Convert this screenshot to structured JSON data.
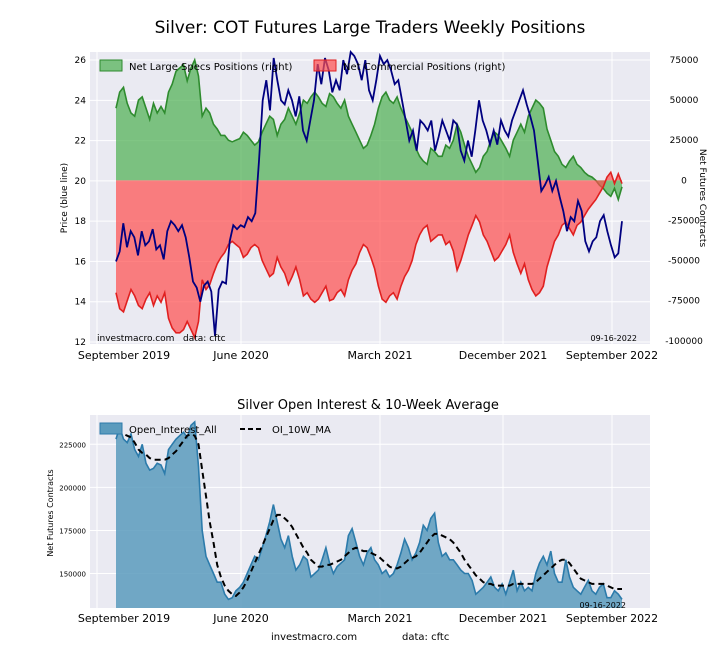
{
  "figure": {
    "footer_site": "investmacro.com",
    "footer_data": "data: cftc"
  },
  "chart_data": [
    {
      "type": "area",
      "title": "Silver: COT Futures Large Traders Weekly Positions",
      "ylabel_left": "Price (blue line)",
      "ylabel_right": "Net Futures Contracts",
      "x_ticks": [
        "September 2019",
        "June 2020",
        "March 2021",
        "December 2021",
        "September 2022"
      ],
      "y_left_ticks": [
        "12",
        "14",
        "16",
        "18",
        "20",
        "22",
        "24",
        "26"
      ],
      "y_left_range": [
        11.9,
        26.4
      ],
      "y_right_ticks": [
        "-100000",
        "-75000",
        "-50000",
        "-25000",
        "0",
        "25000",
        "50000",
        "75000"
      ],
      "y_right_range": [
        -102000,
        80000
      ],
      "legend": [
        "Net Large Specs Positions (right)",
        "Net Commercial Positions (right)"
      ],
      "watermark": "investmacro.com   data: cftc",
      "date_label": "09-16-2022",
      "colors": {
        "specs": "#4caf50",
        "specs_line": "#2e8b2e",
        "commercial": "#ff4d4d",
        "commercial_line": "#e02020",
        "price": "#000080",
        "panel_bg": "#eaeaf2"
      },
      "series": [
        {
          "name": "Net Large Specs Positions",
          "axis": "right",
          "values": [
            45000,
            55000,
            58000,
            48000,
            42000,
            40000,
            50000,
            52000,
            45000,
            38000,
            48000,
            42000,
            46000,
            42000,
            55000,
            60000,
            68000,
            70000,
            72000,
            62000,
            70000,
            75000,
            65000,
            40000,
            45000,
            42000,
            35000,
            32000,
            28000,
            28000,
            25000,
            24000,
            25000,
            26000,
            30000,
            28000,
            25000,
            22000,
            24000,
            30000,
            35000,
            40000,
            38000,
            28000,
            35000,
            38000,
            45000,
            40000,
            35000,
            42000,
            50000,
            48000,
            52000,
            55000,
            52000,
            48000,
            46000,
            54000,
            52000,
            48000,
            45000,
            50000,
            40000,
            35000,
            30000,
            25000,
            20000,
            22000,
            28000,
            35000,
            45000,
            52000,
            55000,
            50000,
            48000,
            52000,
            45000,
            40000,
            35000,
            30000,
            20000,
            15000,
            12000,
            10000,
            20000,
            18000,
            15000,
            15000,
            22000,
            20000,
            25000,
            35000,
            30000,
            22000,
            15000,
            10000,
            5000,
            8000,
            15000,
            18000,
            25000,
            30000,
            28000,
            24000,
            20000,
            15000,
            25000,
            30000,
            35000,
            30000,
            40000,
            45000,
            50000,
            48000,
            45000,
            32000,
            25000,
            18000,
            15000,
            10000,
            8000,
            12000,
            15000,
            10000,
            8000,
            5000,
            3000,
            2000,
            0,
            -3000,
            -5000,
            -8000,
            -10000,
            -5000,
            -12000,
            -4000
          ]
        },
        {
          "name": "Net Commercial Positions",
          "axis": "right",
          "values": [
            -70000,
            -80000,
            -82000,
            -75000,
            -68000,
            -72000,
            -78000,
            -80000,
            -74000,
            -70000,
            -78000,
            -72000,
            -76000,
            -70000,
            -86000,
            -92000,
            -95000,
            -95000,
            -93000,
            -88000,
            -93000,
            -98000,
            -88000,
            -62000,
            -68000,
            -65000,
            -58000,
            -52000,
            -48000,
            -45000,
            -40000,
            -38000,
            -40000,
            -42000,
            -48000,
            -46000,
            -42000,
            -40000,
            -42000,
            -50000,
            -55000,
            -60000,
            -58000,
            -48000,
            -54000,
            -58000,
            -65000,
            -60000,
            -54000,
            -62000,
            -72000,
            -70000,
            -74000,
            -76000,
            -74000,
            -70000,
            -66000,
            -75000,
            -74000,
            -70000,
            -68000,
            -72000,
            -62000,
            -56000,
            -52000,
            -45000,
            -40000,
            -42000,
            -48000,
            -55000,
            -66000,
            -74000,
            -76000,
            -72000,
            -70000,
            -74000,
            -66000,
            -60000,
            -56000,
            -50000,
            -40000,
            -34000,
            -30000,
            -28000,
            -38000,
            -36000,
            -34000,
            -34000,
            -40000,
            -38000,
            -44000,
            -56000,
            -50000,
            -42000,
            -34000,
            -28000,
            -22000,
            -26000,
            -34000,
            -38000,
            -44000,
            -50000,
            -48000,
            -44000,
            -40000,
            -34000,
            -45000,
            -52000,
            -58000,
            -52000,
            -62000,
            -68000,
            -72000,
            -70000,
            -66000,
            -54000,
            -46000,
            -38000,
            -34000,
            -28000,
            -26000,
            -30000,
            -34000,
            -28000,
            -26000,
            -22000,
            -18000,
            -15000,
            -12000,
            -8000,
            -4000,
            2000,
            5000,
            -2000,
            4000,
            -2000
          ]
        },
        {
          "name": "Price",
          "axis": "left",
          "values": [
            16.0,
            16.5,
            17.9,
            16.7,
            17.5,
            17.2,
            16.3,
            17.5,
            16.8,
            17.0,
            17.6,
            16.6,
            16.8,
            16.1,
            17.5,
            18.0,
            17.8,
            17.5,
            17.8,
            17.2,
            16.2,
            15.0,
            14.7,
            14.0,
            14.8,
            15.0,
            14.5,
            12.3,
            14.6,
            15.0,
            14.9,
            17.0,
            17.8,
            17.6,
            17.8,
            17.7,
            18.2,
            18.0,
            18.4,
            21.0,
            24.0,
            25.0,
            23.5,
            26.1,
            25.0,
            24.0,
            23.8,
            24.5,
            24.0,
            23.2,
            24.2,
            22.5,
            22.0,
            23.0,
            24.0,
            25.8,
            24.8,
            26.1,
            25.5,
            24.4,
            25.0,
            24.5,
            26.0,
            25.3,
            27.0,
            26.2,
            25.8,
            25.0,
            26.0,
            24.5,
            24.0,
            25.0,
            26.2,
            25.8,
            26.0,
            25.5,
            24.8,
            25.0,
            24.0,
            23.0,
            22.0,
            22.5,
            21.5,
            23.0,
            22.8,
            22.5,
            23.0,
            21.5,
            22.2,
            23.0,
            22.5,
            22.0,
            23.0,
            22.8,
            21.5,
            21.0,
            22.0,
            21.2,
            22.5,
            24.0,
            23.0,
            22.5,
            21.8,
            22.5,
            21.8,
            23.0,
            22.5,
            22.2,
            23.0,
            23.5,
            24.0,
            24.5,
            23.8,
            23.2,
            22.5,
            21.0,
            19.5,
            19.8,
            20.2,
            19.5,
            20.0,
            19.2,
            18.5,
            17.5,
            18.2,
            18.0,
            19.0,
            18.5,
            17.0,
            16.5,
            17.0,
            17.2,
            18.0,
            18.3,
            17.5,
            16.8,
            16.2,
            16.4,
            18.0
          ]
        }
      ]
    },
    {
      "type": "area",
      "title": "Silver Open Interest & 10-Week Average",
      "ylabel": "Net Futures Contracts",
      "x_ticks": [
        "September 2019",
        "June 2020",
        "March 2021",
        "December 2021",
        "September 2022"
      ],
      "y_ticks": [
        "150000",
        "175000",
        "200000",
        "225000"
      ],
      "y_range": [
        130000,
        242000
      ],
      "legend": [
        "Open_Interest_All",
        "OI_10W_MA"
      ],
      "date_label": "09-16-2022",
      "colors": {
        "oi_fill": "#5b9bbd",
        "oi_line": "#2c7bab",
        "ma": "#000000",
        "panel_bg": "#eaeaf2"
      },
      "series": [
        {
          "name": "Open_Interest_All",
          "values": [
            228000,
            235000,
            228000,
            226000,
            231000,
            222000,
            218000,
            225000,
            214000,
            210000,
            211000,
            214000,
            213000,
            208000,
            222000,
            225000,
            228000,
            230000,
            232000,
            229000,
            236000,
            238000,
            212000,
            175000,
            160000,
            155000,
            150000,
            145000,
            145000,
            138000,
            135000,
            136000,
            140000,
            142000,
            145000,
            150000,
            155000,
            160000,
            158000,
            165000,
            172000,
            180000,
            190000,
            180000,
            170000,
            165000,
            172000,
            160000,
            152000,
            155000,
            160000,
            158000,
            148000,
            150000,
            152000,
            158000,
            165000,
            156000,
            150000,
            154000,
            156000,
            158000,
            172000,
            176000,
            168000,
            160000,
            155000,
            162000,
            165000,
            158000,
            155000,
            150000,
            152000,
            148000,
            150000,
            155000,
            162000,
            170000,
            165000,
            158000,
            162000,
            168000,
            178000,
            175000,
            182000,
            185000,
            168000,
            160000,
            162000,
            158000,
            158000,
            155000,
            152000,
            150000,
            150000,
            146000,
            138000,
            140000,
            142000,
            145000,
            148000,
            142000,
            140000,
            144000,
            138000,
            145000,
            152000,
            140000,
            145000,
            140000,
            142000,
            140000,
            150000,
            156000,
            160000,
            155000,
            163000,
            150000,
            145000,
            145000,
            158000,
            148000,
            142000,
            140000,
            138000,
            142000,
            146000,
            140000,
            138000,
            142000,
            144000,
            136000,
            136000,
            140000,
            138000,
            135000
          ]
        },
        {
          "name": "OI_10W_MA",
          "values": [
            232000,
            232000,
            231000,
            230000,
            229000,
            226000,
            222000,
            220000,
            219000,
            217000,
            216000,
            216000,
            216000,
            216000,
            217000,
            219000,
            221000,
            224000,
            227000,
            230000,
            231000,
            230000,
            225000,
            210000,
            195000,
            180000,
            168000,
            155000,
            148000,
            143000,
            140000,
            138000,
            137000,
            139000,
            142000,
            146000,
            151000,
            156000,
            161000,
            166000,
            171000,
            176000,
            181000,
            184000,
            184000,
            182000,
            180000,
            177000,
            173000,
            169000,
            165000,
            162000,
            158000,
            156000,
            154000,
            154000,
            155000,
            155000,
            156000,
            157000,
            158000,
            160000,
            162000,
            164000,
            165000,
            164000,
            163000,
            163000,
            162000,
            161000,
            160000,
            158000,
            156000,
            154000,
            153000,
            153000,
            154000,
            156000,
            158000,
            159000,
            160000,
            162000,
            165000,
            168000,
            171000,
            173000,
            173000,
            172000,
            171000,
            170000,
            168000,
            165000,
            162000,
            158000,
            155000,
            152000,
            149000,
            147000,
            145000,
            144000,
            144000,
            143000,
            143000,
            143000,
            143000,
            143000,
            144000,
            144000,
            144000,
            144000,
            144000,
            144000,
            145000,
            147000,
            149000,
            151000,
            153000,
            155000,
            157000,
            158000,
            158000,
            156000,
            153000,
            150000,
            147000,
            146000,
            145000,
            144000,
            144000,
            144000,
            144000,
            143000,
            142000,
            141000,
            141000,
            141000
          ]
        }
      ]
    }
  ]
}
